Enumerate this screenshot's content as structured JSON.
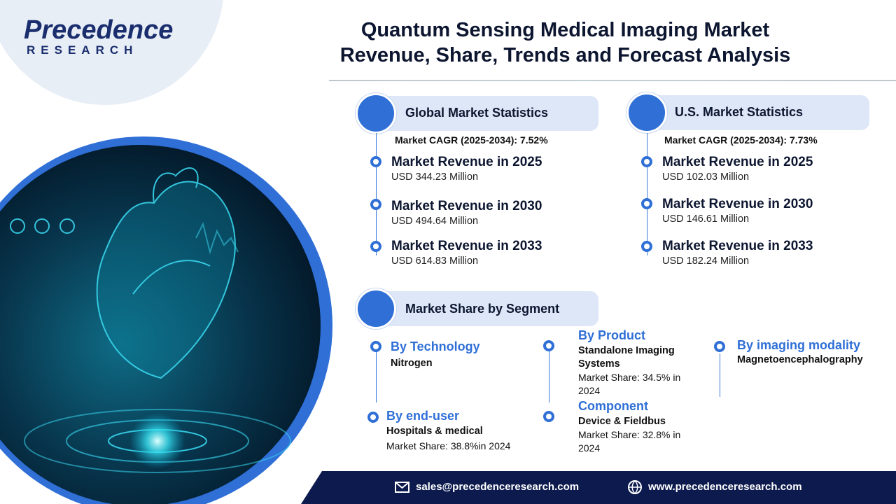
{
  "logo": {
    "name": "Precedence",
    "sub": "RESEARCH"
  },
  "title": [
    "Quantum Sensing Medical Imaging Market",
    "Revenue, Share, Trends and Forecast Analysis"
  ],
  "global": {
    "heading": "Global Market Statistics",
    "cagr": "Market CAGR (2025-2034): 7.52%",
    "items": [
      {
        "label": "Market Revenue in 2025",
        "value": "USD 344.23 Million"
      },
      {
        "label": "Market Revenue in 2030",
        "value": "USD 494.64 Million"
      },
      {
        "label": "Market Revenue in 2033",
        "value": "USD 614.83 Million"
      }
    ]
  },
  "us": {
    "heading": "U.S. Market Statistics",
    "cagr": "Market CAGR (2025-2034): 7.73%",
    "items": [
      {
        "label": "Market Revenue in 2025",
        "value": "USD 102.03  Million"
      },
      {
        "label": "Market Revenue in 2030",
        "value": "USD 146.61 Million"
      },
      {
        "label": "Market Revenue in 2033",
        "value": "USD 182.24 Million"
      }
    ]
  },
  "segment": {
    "heading": "Market Share by Segment",
    "technology": {
      "label": "By Technology",
      "value": "Nitrogen"
    },
    "end_user": {
      "label": "By end-user",
      "value": "Hospitals & medical",
      "share": "Market Share: 38.8%in 2024"
    },
    "product": {
      "label": "By Product",
      "value": "Standalone Imaging Systems",
      "share": "Market Share: 34.5% in 2024"
    },
    "component": {
      "label": "Component",
      "value": "Device & Fieldbus",
      "share": "Market Share:  32.8%  in 2024"
    },
    "modality": {
      "label": "By imaging modality",
      "value": "Magnetoencephalography"
    }
  },
  "footer": {
    "email": "sales@precedenceresearch.com",
    "web": "www.precedenceresearch.com"
  }
}
